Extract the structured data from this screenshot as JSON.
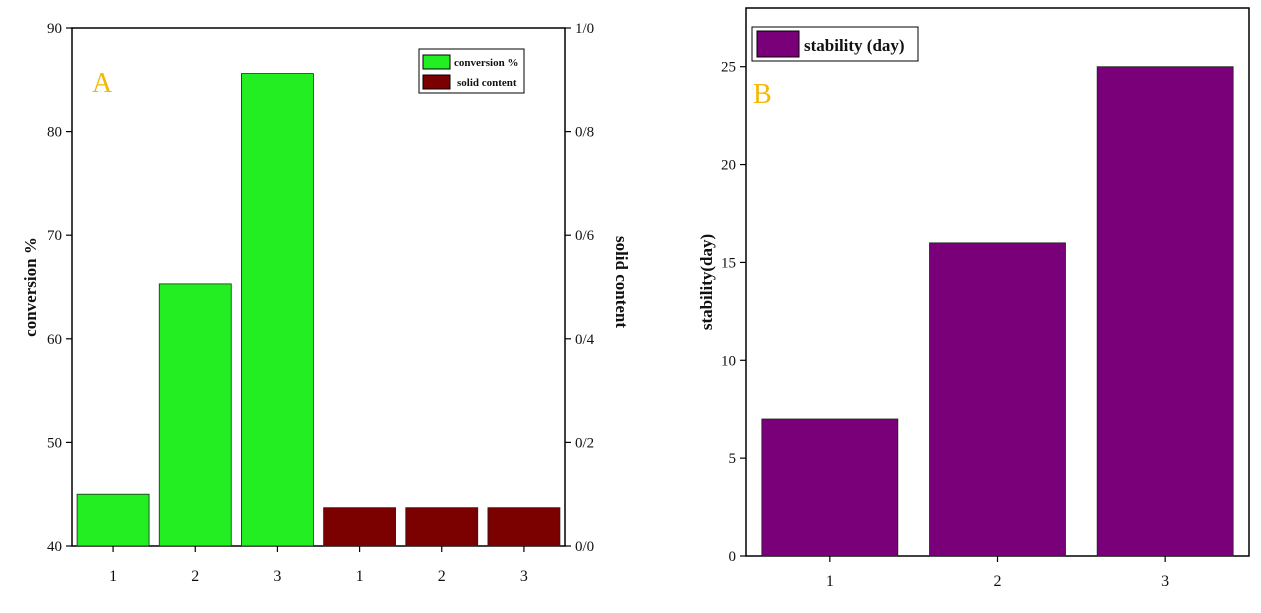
{
  "chart_data": [
    {
      "type": "bar",
      "panel_label": "A",
      "categories": [
        "1",
        "2",
        "3",
        "1",
        "2",
        "3"
      ],
      "series": [
        {
          "name": "conversion %",
          "axis": "left",
          "color": "#22ee22",
          "positions": [
            0,
            1,
            2
          ],
          "values": [
            45,
            65.3,
            85.6
          ]
        },
        {
          "name": "solid content",
          "axis": "right",
          "color": "#7b0000",
          "positions": [
            3,
            4,
            5
          ],
          "values": [
            0.074,
            0.074,
            0.074
          ]
        }
      ],
      "ylabel": "conversion %",
      "ylabel_right": "solid content",
      "ylim": [
        40,
        90
      ],
      "yticks": [
        "40",
        "50",
        "60",
        "70",
        "80",
        "90"
      ],
      "ylim_right": [
        0,
        1
      ],
      "yticks_right": [
        "0/0",
        "0/2",
        "0/4",
        "0/6",
        "0/8",
        "1/0"
      ],
      "legend": "top-right"
    },
    {
      "type": "bar",
      "panel_label": "B",
      "categories": [
        "1",
        "2",
        "3"
      ],
      "series": [
        {
          "name": "stability (day)",
          "color": "#7a007a",
          "values": [
            7,
            16,
            25
          ]
        }
      ],
      "ylabel": "stability(day)",
      "ylim": [
        0,
        28
      ],
      "yticks": [
        "0",
        "5",
        "10",
        "15",
        "20",
        "25"
      ],
      "legend": "top-left"
    }
  ]
}
